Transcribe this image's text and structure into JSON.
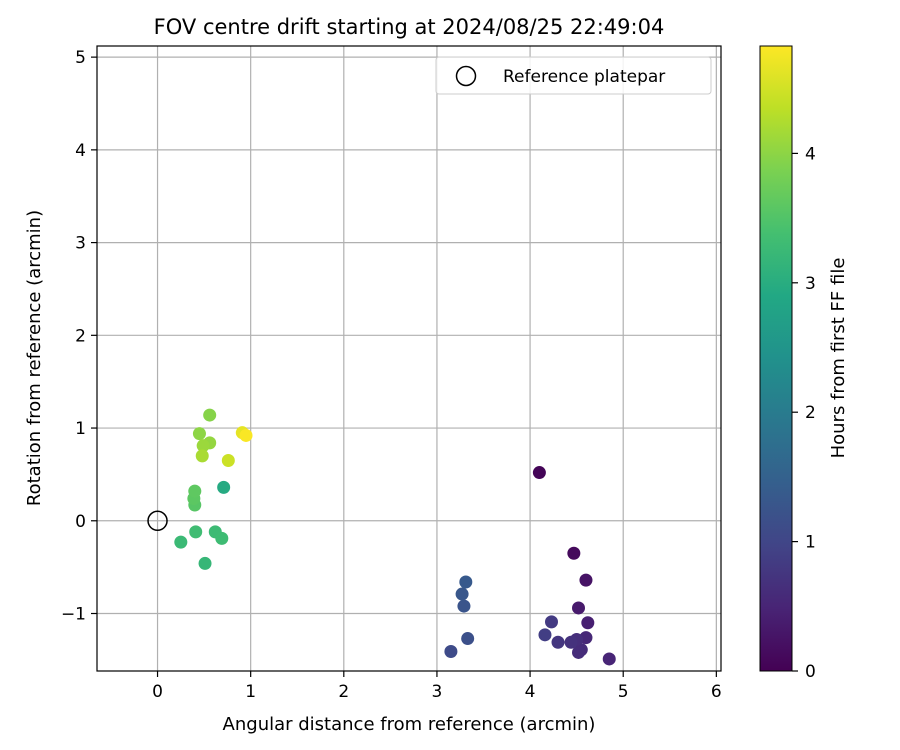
{
  "chart_data": {
    "type": "scatter",
    "title": "FOV centre drift starting at 2024/08/25 22:49:04",
    "xlabel": "Angular distance from reference (arcmin)",
    "ylabel": "Rotation from reference (arcmin)",
    "xlim": [
      -0.65,
      6.05
    ],
    "ylim": [
      -1.62,
      5.12
    ],
    "xticks": [
      0,
      1,
      2,
      3,
      4,
      5,
      6
    ],
    "yticks": [
      -1,
      0,
      1,
      2,
      3,
      4,
      5
    ],
    "xtick_labels": [
      "0",
      "1",
      "2",
      "3",
      "4",
      "5",
      "6"
    ],
    "ytick_labels": [
      "−1",
      "0",
      "1",
      "2",
      "3",
      "4",
      "5"
    ],
    "grid": true,
    "legend": {
      "placement": "top-right",
      "entries": [
        "Reference platepar"
      ]
    },
    "reference_point": {
      "x": 0,
      "y": 0,
      "label": "Reference platepar"
    },
    "colorbar": {
      "label": "Hours from first FF file",
      "range": [
        0,
        4.83
      ],
      "ticks": [
        0,
        1,
        2,
        3,
        4
      ],
      "tick_labels": [
        "0",
        "1",
        "2",
        "3",
        "4"
      ],
      "colormap": "viridis"
    },
    "points": [
      {
        "x": 4.1,
        "y": 0.52,
        "t": 0.05
      },
      {
        "x": 4.47,
        "y": -0.35,
        "t": 0.12
      },
      {
        "x": 4.6,
        "y": -0.64,
        "t": 0.25
      },
      {
        "x": 4.52,
        "y": -0.94,
        "t": 0.35
      },
      {
        "x": 4.62,
        "y": -1.1,
        "t": 0.42
      },
      {
        "x": 4.85,
        "y": -1.49,
        "t": 0.5
      },
      {
        "x": 4.6,
        "y": -1.26,
        "t": 0.55
      },
      {
        "x": 4.55,
        "y": -1.39,
        "t": 0.6
      },
      {
        "x": 4.52,
        "y": -1.42,
        "t": 0.62
      },
      {
        "x": 4.5,
        "y": -1.28,
        "t": 0.65
      },
      {
        "x": 4.44,
        "y": -1.31,
        "t": 0.7
      },
      {
        "x": 4.3,
        "y": -1.31,
        "t": 0.75
      },
      {
        "x": 4.23,
        "y": -1.09,
        "t": 0.82
      },
      {
        "x": 4.16,
        "y": -1.23,
        "t": 0.88
      },
      {
        "x": 3.15,
        "y": -1.41,
        "t": 1.1
      },
      {
        "x": 3.33,
        "y": -1.27,
        "t": 1.18
      },
      {
        "x": 3.29,
        "y": -0.92,
        "t": 1.25
      },
      {
        "x": 3.27,
        "y": -0.79,
        "t": 1.3
      },
      {
        "x": 3.31,
        "y": -0.66,
        "t": 1.35
      },
      {
        "x": 0.71,
        "y": 0.36,
        "t": 2.95
      },
      {
        "x": 0.51,
        "y": -0.46,
        "t": 3.2
      },
      {
        "x": 0.25,
        "y": -0.23,
        "t": 3.25
      },
      {
        "x": 0.62,
        "y": -0.12,
        "t": 3.28
      },
      {
        "x": 0.69,
        "y": -0.19,
        "t": 3.3
      },
      {
        "x": 0.41,
        "y": -0.12,
        "t": 3.32
      },
      {
        "x": 0.4,
        "y": 0.17,
        "t": 3.55
      },
      {
        "x": 0.39,
        "y": 0.24,
        "t": 3.6
      },
      {
        "x": 0.4,
        "y": 0.32,
        "t": 3.62
      },
      {
        "x": 0.56,
        "y": 1.14,
        "t": 3.95
      },
      {
        "x": 0.45,
        "y": 0.94,
        "t": 4.0
      },
      {
        "x": 0.56,
        "y": 0.84,
        "t": 4.05
      },
      {
        "x": 0.49,
        "y": 0.81,
        "t": 4.1
      },
      {
        "x": 0.48,
        "y": 0.7,
        "t": 4.2
      },
      {
        "x": 0.76,
        "y": 0.65,
        "t": 4.45
      },
      {
        "x": 0.91,
        "y": 0.95,
        "t": 4.65
      },
      {
        "x": 0.95,
        "y": 0.92,
        "t": 4.8
      }
    ]
  }
}
